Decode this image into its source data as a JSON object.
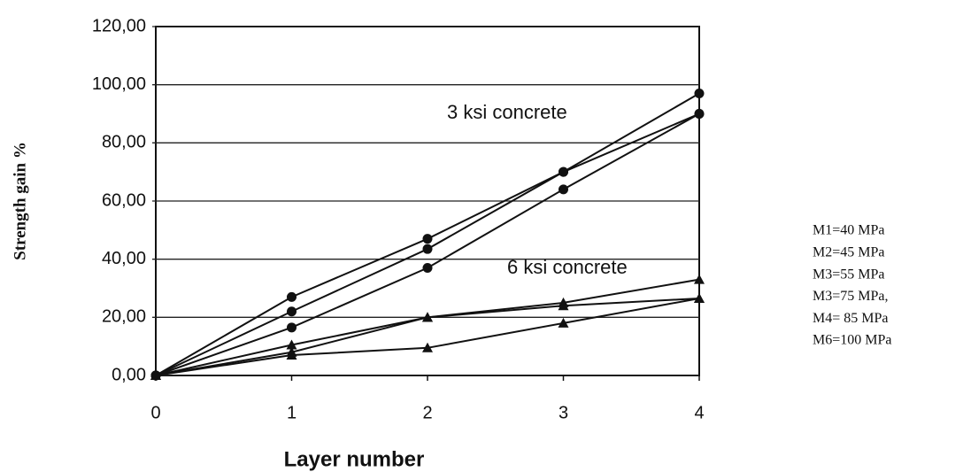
{
  "chart_data": {
    "type": "line",
    "x": [
      0,
      1,
      2,
      3,
      4
    ],
    "xlim": [
      0,
      4
    ],
    "xticks": [
      0,
      1,
      2,
      3,
      4
    ],
    "ylim": [
      0,
      120
    ],
    "yticks": [
      {
        "value": 0,
        "label": "0,00"
      },
      {
        "value": 20,
        "label": "20,00"
      },
      {
        "value": 40,
        "label": "40,00"
      },
      {
        "value": 60,
        "label": "60,00"
      },
      {
        "value": 80,
        "label": "80,00"
      },
      {
        "value": 100,
        "label": "100,00"
      },
      {
        "value": 120,
        "label": "120,00"
      }
    ],
    "grid": true,
    "x_label": "Layer number",
    "y_label": "Strength gain %",
    "annotations": [
      "3 ksi concrete",
      "6 ksi concrete"
    ],
    "notes": [
      "M1=40 MPa",
      "M2=45 MPa",
      "M3=55 MPa",
      "M3=75 MPa,",
      "M4= 85 MPa",
      "M6=100 MPa"
    ],
    "series": [
      {
        "color": "#111111",
        "marker": "circle",
        "values": [
          0,
          27,
          47,
          70,
          97
        ]
      },
      {
        "color": "#111111",
        "marker": "circle",
        "values": [
          0,
          22,
          43.5,
          70,
          90
        ]
      },
      {
        "color": "#111111",
        "marker": "circle",
        "values": [
          0,
          16.5,
          37,
          64,
          90
        ]
      },
      {
        "color": "#111111",
        "marker": "triangle",
        "values": [
          0,
          10.5,
          20,
          25,
          33
        ]
      },
      {
        "color": "#111111",
        "marker": "triangle",
        "values": [
          0,
          8,
          20,
          24,
          26.5
        ]
      },
      {
        "color": "#111111",
        "marker": "triangle",
        "values": [
          0,
          7,
          9.5,
          18,
          26.5
        ]
      }
    ]
  }
}
